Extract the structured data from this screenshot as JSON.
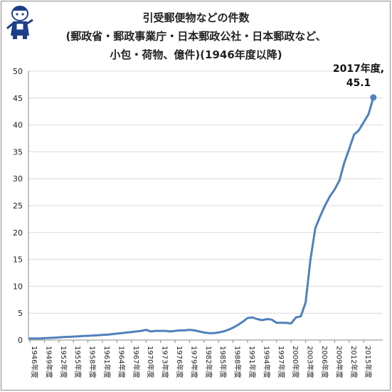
{
  "chart_data": {
    "type": "line",
    "title_lines": [
      "引受郵便物などの件数",
      "(郵政省・郵政事業庁・日本郵政公社・日本郵政など、",
      "小包・荷物、億件)(1946年度以降)"
    ],
    "xlabel": "",
    "ylabel": "",
    "ylim": [
      0,
      50
    ],
    "yticks": [
      0,
      5,
      10,
      15,
      20,
      25,
      30,
      35,
      40,
      45,
      50
    ],
    "grid": true,
    "x_tick_labels": [
      "1946年度",
      "1949年度",
      "1952年度",
      "1955年度",
      "1958年度",
      "1961年度",
      "1964年度",
      "1967年度",
      "1970年度",
      "1973年度",
      "1976年度",
      "1979年度",
      "1982年度",
      "1985年度",
      "1988年度",
      "1991年度",
      "1994年度",
      "1997年度",
      "2000年度",
      "2003年度",
      "2006年度",
      "2009年度",
      "2012年度",
      "2015年度"
    ],
    "series": [
      {
        "color": "#4f81bd",
        "x": [
          1946,
          1947,
          1948,
          1949,
          1950,
          1951,
          1952,
          1953,
          1954,
          1955,
          1956,
          1957,
          1958,
          1959,
          1960,
          1961,
          1962,
          1963,
          1964,
          1965,
          1966,
          1967,
          1968,
          1969,
          1970,
          1971,
          1972,
          1973,
          1974,
          1975,
          1976,
          1977,
          1978,
          1979,
          1980,
          1981,
          1982,
          1983,
          1984,
          1985,
          1986,
          1987,
          1988,
          1989,
          1990,
          1991,
          1992,
          1993,
          1994,
          1995,
          1996,
          1997,
          1998,
          1999,
          2000,
          2001,
          2002,
          2003,
          2004,
          2005,
          2006,
          2007,
          2008,
          2009,
          2010,
          2011,
          2012,
          2013,
          2014,
          2015,
          2016,
          2017
        ],
        "values": [
          0.3,
          0.3,
          0.3,
          0.35,
          0.4,
          0.45,
          0.5,
          0.55,
          0.6,
          0.65,
          0.7,
          0.75,
          0.8,
          0.85,
          0.9,
          0.95,
          1.0,
          1.1,
          1.2,
          1.3,
          1.4,
          1.5,
          1.6,
          1.7,
          1.9,
          1.6,
          1.7,
          1.7,
          1.7,
          1.6,
          1.7,
          1.8,
          1.8,
          1.9,
          1.8,
          1.6,
          1.4,
          1.3,
          1.3,
          1.4,
          1.6,
          1.9,
          2.3,
          2.8,
          3.4,
          4.1,
          4.2,
          3.9,
          3.7,
          3.9,
          3.8,
          3.2,
          3.2,
          3.2,
          3.1,
          4.2,
          4.4,
          7.0,
          15.0,
          20.8,
          23.0,
          25.0,
          26.7,
          28.0,
          29.7,
          33.0,
          35.5,
          38.2,
          39.0,
          40.5,
          42.0,
          45.1
        ]
      }
    ],
    "annotation": {
      "line1": "2017年度,",
      "line2": "45.1"
    }
  }
}
